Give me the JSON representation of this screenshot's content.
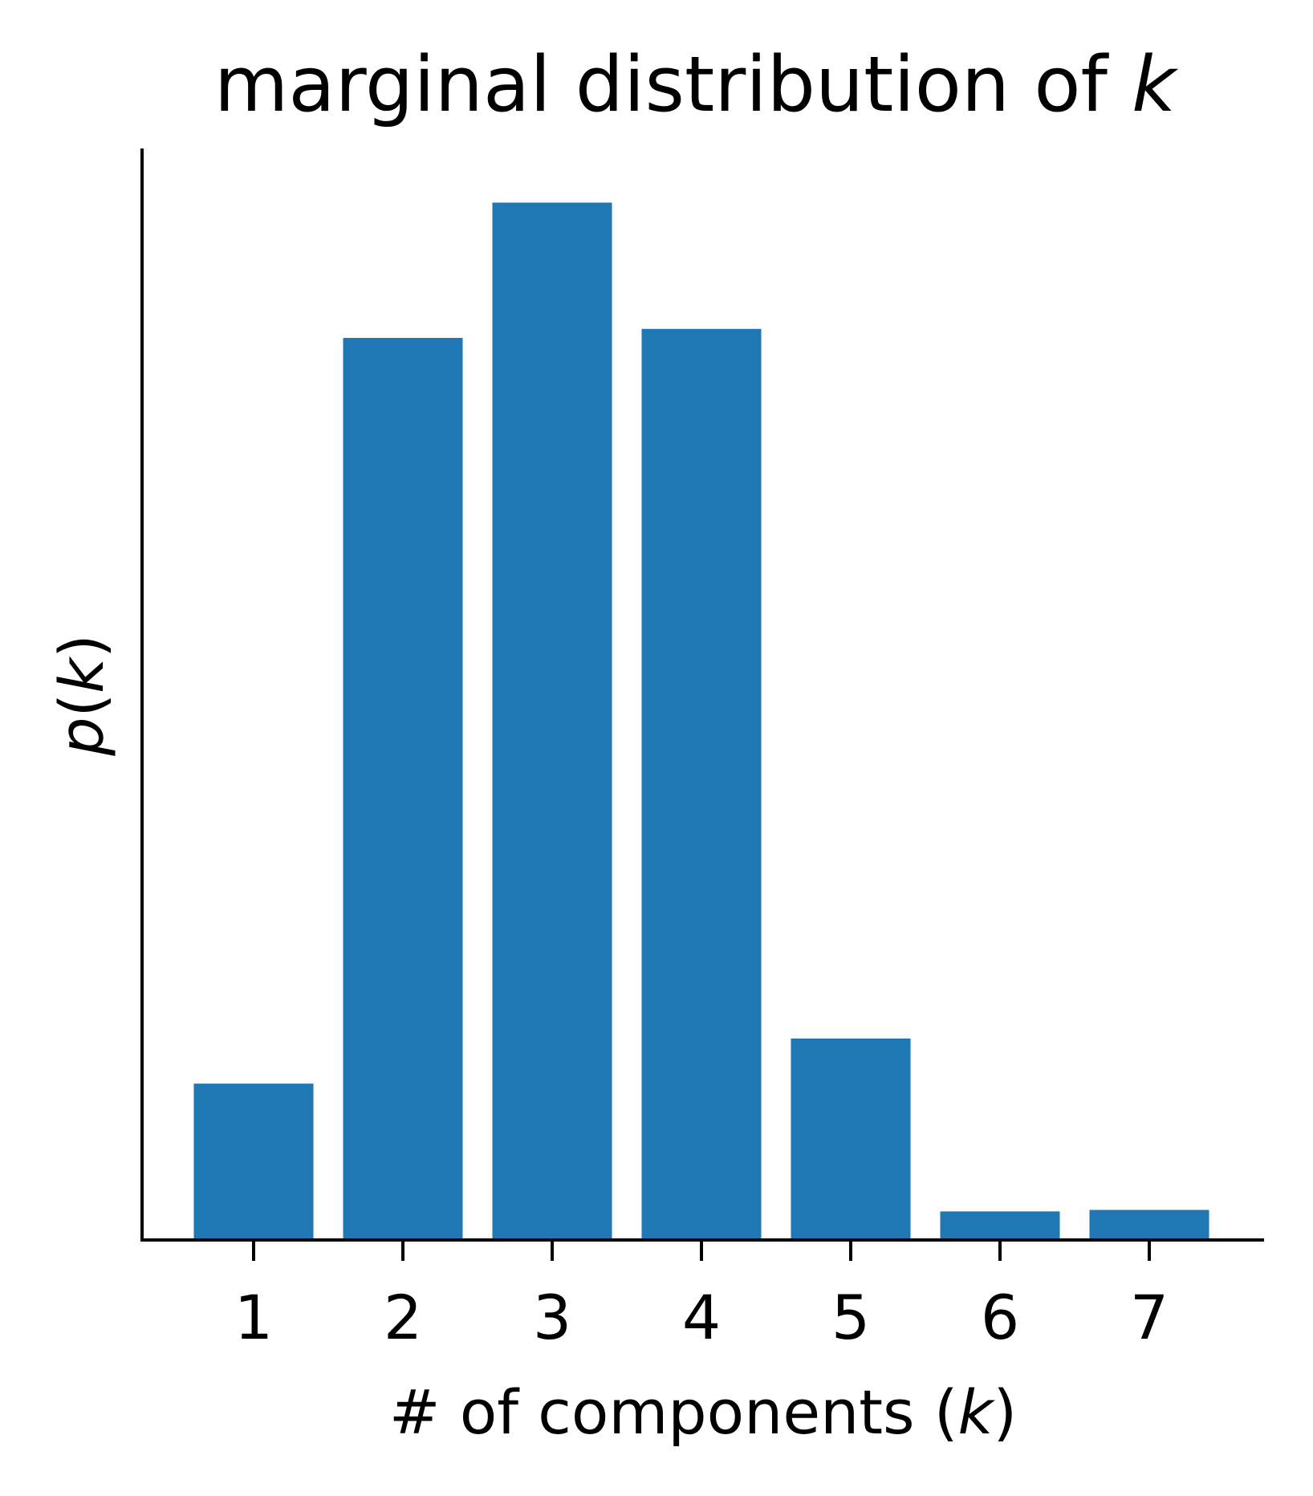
{
  "chart_data": {
    "type": "bar",
    "title": {
      "text": "marginal distribution of ",
      "var": "k"
    },
    "xlabel": {
      "before": "# of components (",
      "var": "k",
      "after": ")"
    },
    "ylabel": {
      "func": "p",
      "open": "(",
      "var": "k",
      "close": ")"
    },
    "categories": [
      "1",
      "2",
      "3",
      "4",
      "5",
      "6",
      "7"
    ],
    "values": [
      0.052,
      0.3,
      0.345,
      0.303,
      0.067,
      0.0095,
      0.01
    ],
    "ylim": [
      0,
      0.363
    ],
    "y_ticks_visible": false,
    "grid": false,
    "legend": "none",
    "bar_color": "#1f77b4",
    "axis_color": "#000000"
  }
}
